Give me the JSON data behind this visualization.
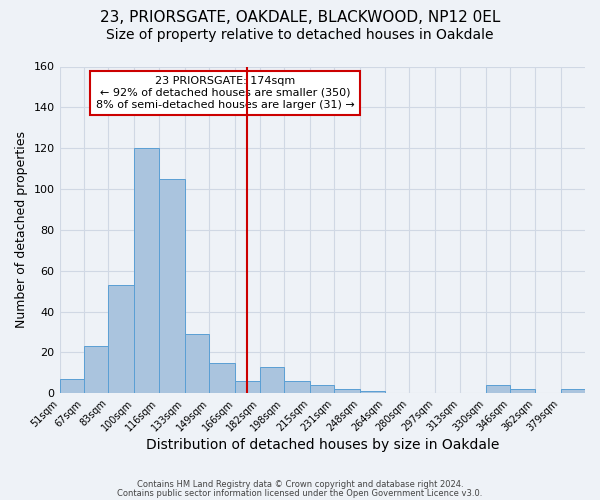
{
  "title": "23, PRIORSGATE, OAKDALE, BLACKWOOD, NP12 0EL",
  "subtitle": "Size of property relative to detached houses in Oakdale",
  "xlabel": "Distribution of detached houses by size in Oakdale",
  "ylabel": "Number of detached properties",
  "bin_labels": [
    "51sqm",
    "67sqm",
    "83sqm",
    "100sqm",
    "116sqm",
    "133sqm",
    "149sqm",
    "166sqm",
    "182sqm",
    "198sqm",
    "215sqm",
    "231sqm",
    "248sqm",
    "264sqm",
    "280sqm",
    "297sqm",
    "313sqm",
    "330sqm",
    "346sqm",
    "362sqm",
    "379sqm"
  ],
  "bar_values": [
    7,
    23,
    53,
    120,
    105,
    29,
    15,
    6,
    13,
    6,
    4,
    2,
    1,
    0,
    0,
    0,
    0,
    4,
    2,
    0,
    2
  ],
  "bar_color": "#aac4de",
  "bar_edgecolor": "#5a9fd4",
  "vline_x_data": 174,
  "bin_edges": [
    51,
    67,
    83,
    100,
    116,
    133,
    149,
    166,
    182,
    198,
    215,
    231,
    248,
    264,
    280,
    297,
    313,
    330,
    346,
    362,
    379,
    395
  ],
  "vline_color": "#cc0000",
  "annotation_title": "23 PRIORSGATE: 174sqm",
  "annotation_line1": "← 92% of detached houses are smaller (350)",
  "annotation_line2": "8% of semi-detached houses are larger (31) →",
  "annotation_box_edgecolor": "#cc0000",
  "ylim": [
    0,
    160
  ],
  "yticks": [
    0,
    20,
    40,
    60,
    80,
    100,
    120,
    140,
    160
  ],
  "footer1": "Contains HM Land Registry data © Crown copyright and database right 2024.",
  "footer2": "Contains public sector information licensed under the Open Government Licence v3.0.",
  "bg_color": "#eef2f7",
  "grid_color": "#d0d8e4",
  "title_fontsize": 11,
  "subtitle_fontsize": 10,
  "xlabel_fontsize": 10,
  "ylabel_fontsize": 9
}
